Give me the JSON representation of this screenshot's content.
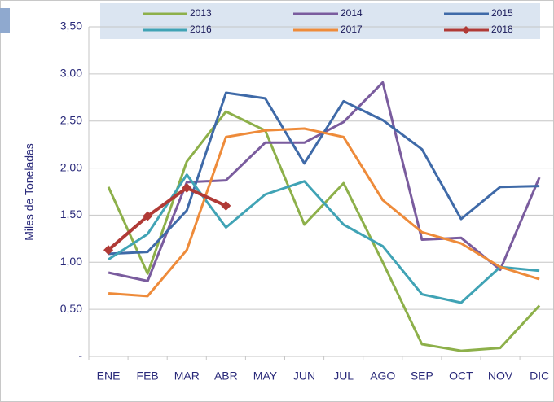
{
  "chart_data": {
    "type": "line",
    "y_label": "Miles de Toneladas",
    "categories": [
      "ENE",
      "FEB",
      "MAR",
      "ABR",
      "MAY",
      "JUN",
      "JUL",
      "AGO",
      "SEP",
      "OCT",
      "NOV",
      "DIC"
    ],
    "series": [
      {
        "name": "2013",
        "color": "#8db04a",
        "values": [
          1.8,
          0.88,
          2.07,
          2.6,
          2.4,
          1.4,
          1.84,
          1.0,
          0.13,
          0.06,
          0.09,
          0.54
        ]
      },
      {
        "name": "2014",
        "color": "#7a5c9e",
        "values": [
          0.89,
          0.8,
          1.85,
          1.87,
          2.27,
          2.27,
          2.49,
          2.91,
          1.24,
          1.26,
          0.92,
          1.9
        ]
      },
      {
        "name": "2015",
        "color": "#3f6aa8",
        "values": [
          1.09,
          1.11,
          1.55,
          2.8,
          2.74,
          2.05,
          2.71,
          2.51,
          2.2,
          1.46,
          1.8,
          1.81
        ]
      },
      {
        "name": "2016",
        "color": "#40a3b5",
        "values": [
          1.03,
          1.3,
          1.93,
          1.37,
          1.72,
          1.86,
          1.4,
          1.17,
          0.66,
          0.57,
          0.95,
          0.91
        ]
      },
      {
        "name": "2017",
        "color": "#ee8b3a",
        "values": [
          0.67,
          0.64,
          1.13,
          2.33,
          2.4,
          2.42,
          2.33,
          1.66,
          1.32,
          1.2,
          0.95,
          0.82
        ]
      },
      {
        "name": "2018",
        "color": "#b03a36",
        "marker": "diamond",
        "values": [
          1.13,
          1.49,
          1.79,
          1.6,
          null,
          null,
          null,
          null,
          null,
          null,
          null,
          null
        ]
      }
    ],
    "ylim": [
      0,
      3.5
    ],
    "yticks": [
      {
        "value": 0,
        "label": "-"
      },
      {
        "value": 0.5,
        "label": "0,50"
      },
      {
        "value": 1,
        "label": "1,00"
      },
      {
        "value": 1.5,
        "label": "1,50"
      },
      {
        "value": 2,
        "label": "2,00"
      },
      {
        "value": 2.5,
        "label": "2,50"
      },
      {
        "value": 3,
        "label": "3,00"
      },
      {
        "value": 3.5,
        "label": "3,50"
      }
    ],
    "grid": true
  }
}
